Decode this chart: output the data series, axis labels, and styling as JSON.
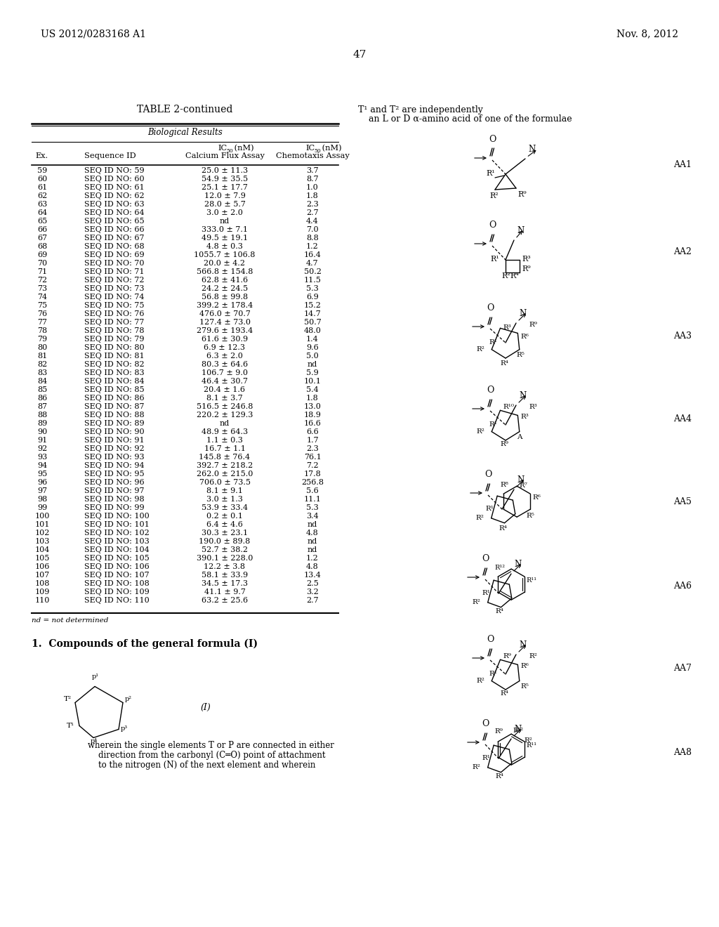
{
  "header_left": "US 2012/0283168 A1",
  "header_right": "Nov. 8, 2012",
  "page_number": "47",
  "table_title": "TABLE 2-continued",
  "table_subtitle": "Biological Results",
  "rows": [
    [
      "59",
      "SEQ ID NO: 59",
      "25.0 ± 11.3",
      "3.7"
    ],
    [
      "60",
      "SEQ ID NO: 60",
      "54.9 ± 35.5",
      "8.7"
    ],
    [
      "61",
      "SEQ ID NO: 61",
      "25.1 ± 17.7",
      "1.0"
    ],
    [
      "62",
      "SEQ ID NO: 62",
      "12.0 ± 7.9",
      "1.8"
    ],
    [
      "63",
      "SEQ ID NO: 63",
      "28.0 ± 5.7",
      "2.3"
    ],
    [
      "64",
      "SEQ ID NO: 64",
      "3.0 ± 2.0",
      "2.7"
    ],
    [
      "65",
      "SEQ ID NO: 65",
      "nd",
      "4.4"
    ],
    [
      "66",
      "SEQ ID NO: 66",
      "333.0 ± 7.1",
      "7.0"
    ],
    [
      "67",
      "SEQ ID NO: 67",
      "49.5 ± 19.1",
      "8.8"
    ],
    [
      "68",
      "SEQ ID NO: 68",
      "4.8 ± 0.3",
      "1.2"
    ],
    [
      "69",
      "SEQ ID NO: 69",
      "1055.7 ± 106.8",
      "16.4"
    ],
    [
      "70",
      "SEQ ID NO: 70",
      "20.0 ± 4.2",
      "4.7"
    ],
    [
      "71",
      "SEQ ID NO: 71",
      "566.8 ± 154.8",
      "50.2"
    ],
    [
      "72",
      "SEQ ID NO: 72",
      "62.8 ± 41.6",
      "11.5"
    ],
    [
      "73",
      "SEQ ID NO: 73",
      "24.2 ± 24.5",
      "5.3"
    ],
    [
      "74",
      "SEQ ID NO: 74",
      "56.8 ± 99.8",
      "6.9"
    ],
    [
      "75",
      "SEQ ID NO: 75",
      "399.2 ± 178.4",
      "15.2"
    ],
    [
      "76",
      "SEQ ID NO: 76",
      "476.0 ± 70.7",
      "14.7"
    ],
    [
      "77",
      "SEQ ID NO: 77",
      "127.4 ± 73.0",
      "50.7"
    ],
    [
      "78",
      "SEQ ID NO: 78",
      "279.6 ± 193.4",
      "48.0"
    ],
    [
      "79",
      "SEQ ID NO: 79",
      "61.6 ± 30.9",
      "1.4"
    ],
    [
      "80",
      "SEQ ID NO: 80",
      "6.9 ± 12.3",
      "9.6"
    ],
    [
      "81",
      "SEQ ID NO: 81",
      "6.3 ± 2.0",
      "5.0"
    ],
    [
      "82",
      "SEQ ID NO: 82",
      "80.3 ± 64.6",
      "nd"
    ],
    [
      "83",
      "SEQ ID NO: 83",
      "106.7 ± 9.0",
      "5.9"
    ],
    [
      "84",
      "SEQ ID NO: 84",
      "46.4 ± 30.7",
      "10.1"
    ],
    [
      "85",
      "SEQ ID NO: 85",
      "20.4 ± 1.6",
      "5.4"
    ],
    [
      "86",
      "SEQ ID NO: 86",
      "8.1 ± 3.7",
      "1.8"
    ],
    [
      "87",
      "SEQ ID NO: 87",
      "516.5 ± 246.8",
      "13.0"
    ],
    [
      "88",
      "SEQ ID NO: 88",
      "220.2 ± 129.3",
      "18.9"
    ],
    [
      "89",
      "SEQ ID NO: 89",
      "nd",
      "16.6"
    ],
    [
      "90",
      "SEQ ID NO: 90",
      "48.9 ± 64.3",
      "6.6"
    ],
    [
      "91",
      "SEQ ID NO: 91",
      "1.1 ± 0.3",
      "1.7"
    ],
    [
      "92",
      "SEQ ID NO: 92",
      "16.7 ± 1.1",
      "2.3"
    ],
    [
      "93",
      "SEQ ID NO: 93",
      "145.8 ± 76.4",
      "76.1"
    ],
    [
      "94",
      "SEQ ID NO: 94",
      "392.7 ± 218.2",
      "7.2"
    ],
    [
      "95",
      "SEQ ID NO: 95",
      "262.0 ± 215.0",
      "17.8"
    ],
    [
      "96",
      "SEQ ID NO: 96",
      "706.0 ± 73.5",
      "256.8"
    ],
    [
      "97",
      "SEQ ID NO: 97",
      "8.1 ± 9.1",
      "5.6"
    ],
    [
      "98",
      "SEQ ID NO: 98",
      "3.0 ± 1.3",
      "11.1"
    ],
    [
      "99",
      "SEQ ID NO: 99",
      "53.9 ± 33.4",
      "5.3"
    ],
    [
      "100",
      "SEQ ID NO: 100",
      "0.2 ± 0.1",
      "3.4"
    ],
    [
      "101",
      "SEQ ID NO: 101",
      "6.4 ± 4.6",
      "nd"
    ],
    [
      "102",
      "SEQ ID NO: 102",
      "30.3 ± 23.1",
      "4.8"
    ],
    [
      "103",
      "SEQ ID NO: 103",
      "190.0 ± 89.8",
      "nd"
    ],
    [
      "104",
      "SEQ ID NO: 104",
      "52.7 ± 38.2",
      "nd"
    ],
    [
      "105",
      "SEQ ID NO: 105",
      "390.1 ± 228.0",
      "1.2"
    ],
    [
      "106",
      "SEQ ID NO: 106",
      "12.2 ± 3.8",
      "4.8"
    ],
    [
      "107",
      "SEQ ID NO: 107",
      "58.1 ± 33.9",
      "13.4"
    ],
    [
      "108",
      "SEQ ID NO: 108",
      "34.5 ± 17.3",
      "2.5"
    ],
    [
      "109",
      "SEQ ID NO: 109",
      "41.1 ± 9.7",
      "3.2"
    ],
    [
      "110",
      "SEQ ID NO: 110",
      "63.2 ± 25.6",
      "2.7"
    ]
  ],
  "footnote": "nd = not determined",
  "claim_title": "1.  Compounds of the general formula (I)",
  "claim_label": "(I)",
  "formula_text_lines": [
    "wherein the single elements T or P are connected in either",
    "    direction from the carbonyl (C═O) point of attachment",
    "    to the nitrogen (N) of the next element and wherein"
  ],
  "right_header_text1": "T¹ and T² are independently",
  "right_header_text2": "    an L or D α-amino acid of one of the formulae",
  "aa_labels": [
    "AA1",
    "AA2",
    "AA3",
    "AA4",
    "AA5",
    "AA6",
    "AA7",
    "AA8"
  ],
  "background_color": "#ffffff",
  "text_color": "#000000"
}
